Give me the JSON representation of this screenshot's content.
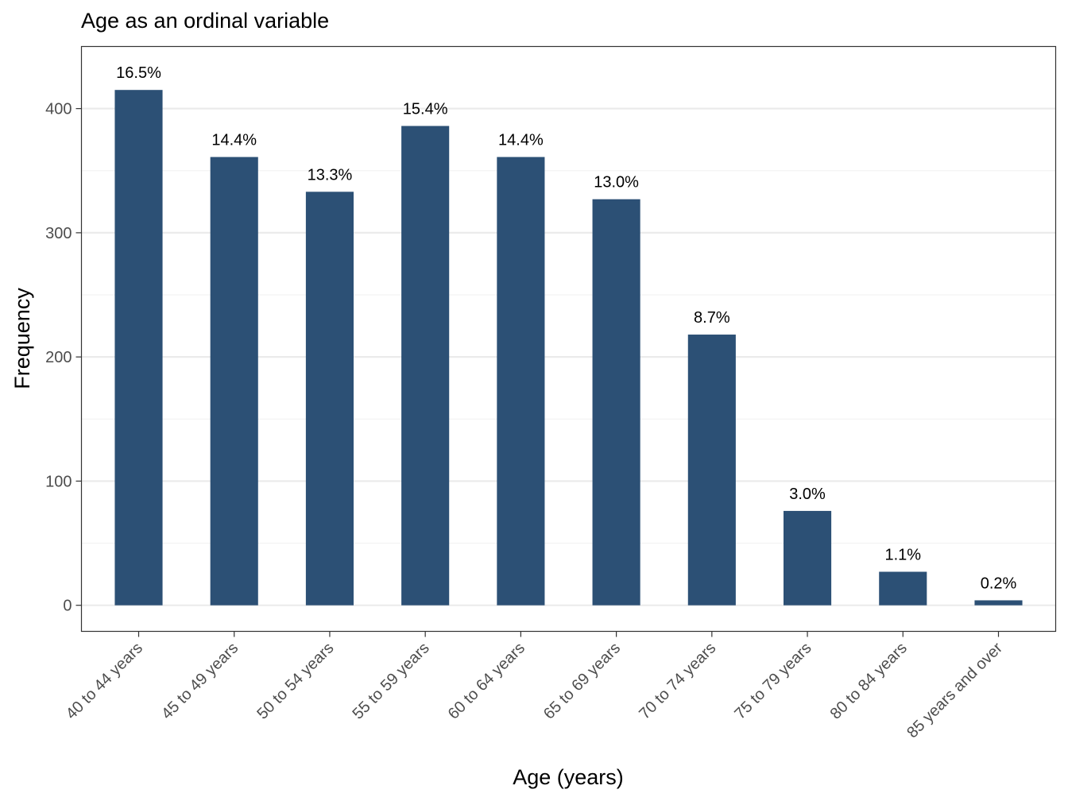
{
  "chart_data": {
    "type": "bar",
    "title": "Age as an ordinal variable",
    "xlabel": "Age (years)",
    "ylabel": "Frequency",
    "categories": [
      "40 to 44 years",
      "45 to 49 years",
      "50 to 54 years",
      "55 to 59 years",
      "60 to 64 years",
      "65 to 69 years",
      "70 to 74 years",
      "75 to 79 years",
      "80 to 84 years",
      "85 years and over"
    ],
    "values": [
      415,
      361,
      333,
      386,
      361,
      327,
      218,
      76,
      27,
      4
    ],
    "data_labels": [
      "16.5%",
      "14.4%",
      "13.3%",
      "15.4%",
      "14.4%",
      "13.0%",
      "8.7%",
      "3.0%",
      "1.1%",
      "0.2%"
    ],
    "ylim": [
      -21,
      450
    ],
    "yticks": [
      0,
      100,
      200,
      300,
      400
    ],
    "ytick_labels": [
      "0",
      "100",
      "200",
      "300",
      "400"
    ],
    "minor_gridlines": [
      50,
      150,
      250,
      350
    ],
    "grid": true,
    "legend": "none",
    "colors": {
      "bar": "#2c5075",
      "panel_border": "#333333",
      "major_grid": "#ebebeb",
      "minor_grid": "#f2f2f2",
      "tick": "#333333"
    }
  }
}
